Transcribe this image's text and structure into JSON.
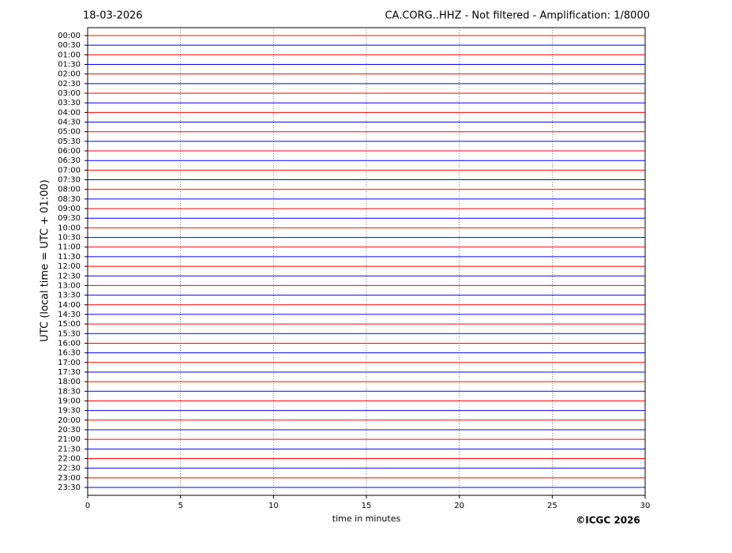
{
  "chart_data": {
    "type": "helicorder",
    "date": "18-03-2026",
    "title": "CA.CORG..HHZ - Not filtered - Amplification: 1/8000",
    "xlabel": "time in minutes",
    "ylabel": "UTC (local time = UTC + 01:00)",
    "copyright": "©ICGC 2026",
    "xlim": [
      0,
      30
    ],
    "xticks": [
      0,
      5,
      10,
      15,
      20,
      25,
      30
    ],
    "grid": true,
    "trace_colors": [
      "#ff0000",
      "#0000ff"
    ],
    "categories": [
      "00:00",
      "00:30",
      "01:00",
      "01:30",
      "02:00",
      "02:30",
      "03:00",
      "03:30",
      "04:00",
      "04:30",
      "05:00",
      "05:30",
      "06:00",
      "06:30",
      "07:00",
      "07:30",
      "08:00",
      "08:30",
      "09:00",
      "09:30",
      "10:00",
      "10:30",
      "11:00",
      "11:30",
      "12:00",
      "12:30",
      "13:00",
      "13:30",
      "14:00",
      "14:30",
      "15:00",
      "15:30",
      "16:00",
      "16:30",
      "17:00",
      "17:30",
      "18:00",
      "18:30",
      "19:00",
      "19:30",
      "20:00",
      "20:30",
      "21:00",
      "21:30",
      "22:00",
      "22:30",
      "23:00",
      "23:30"
    ]
  }
}
